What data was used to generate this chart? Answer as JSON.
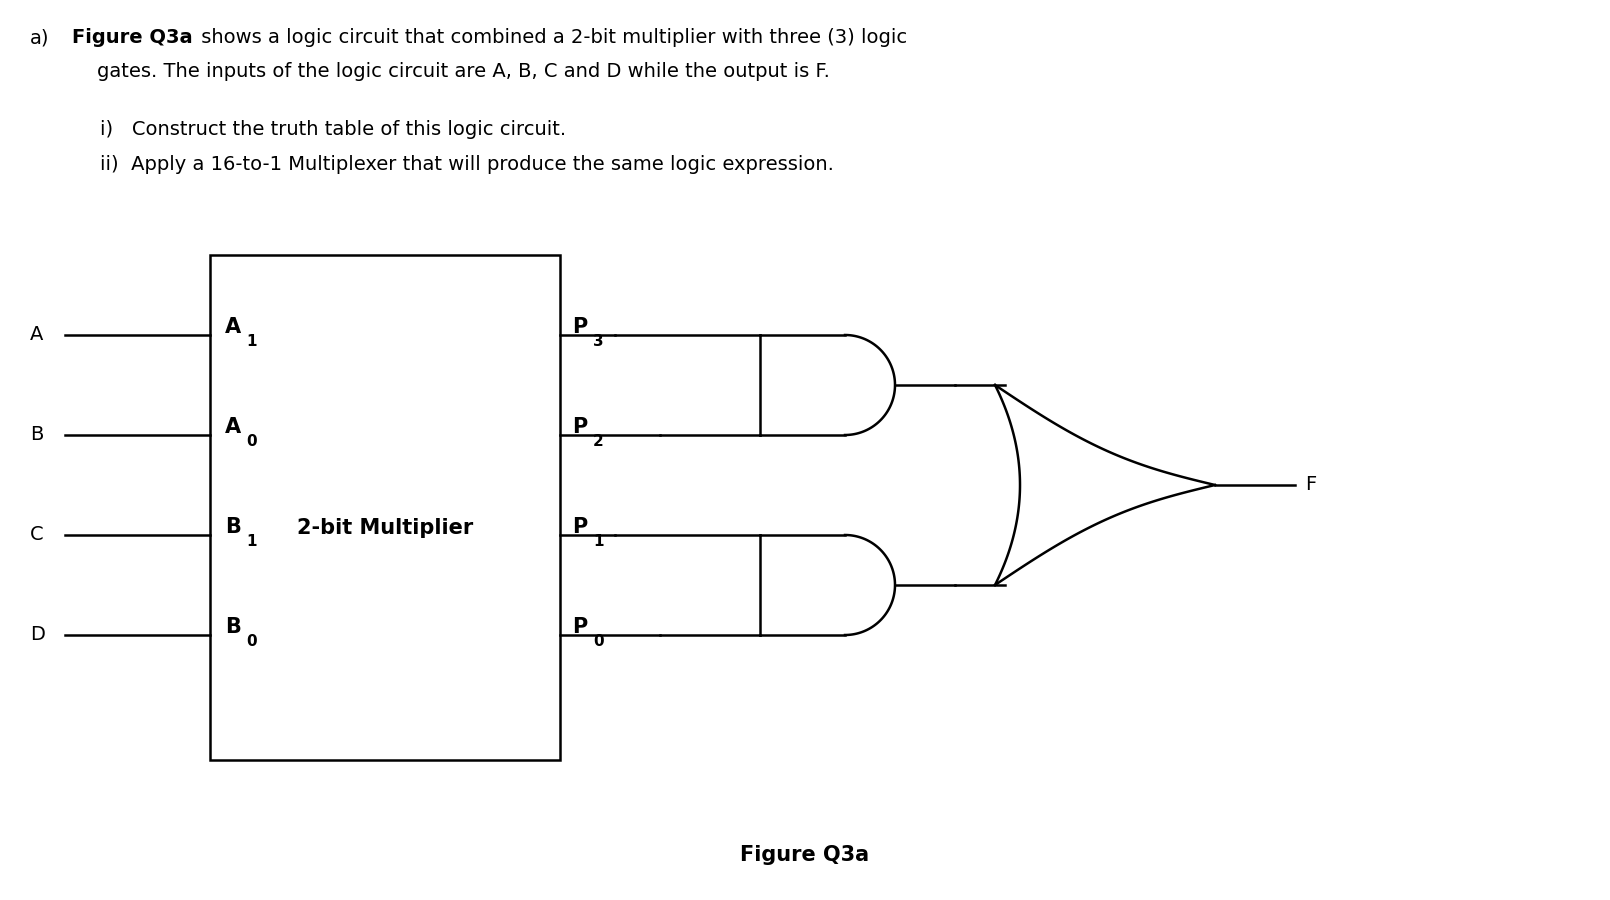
{
  "bg_color": "#ffffff",
  "line_color": "#000000",
  "title_text": "Figure Q3a",
  "multiplier_label": "2-bit Multiplier",
  "output_label": "F",
  "inputs": [
    "A",
    "B",
    "C",
    "D"
  ],
  "input_labels_inside": [
    [
      "A",
      "1"
    ],
    [
      "A",
      "0"
    ],
    [
      "B",
      "1"
    ],
    [
      "B",
      "0"
    ]
  ],
  "output_labels": [
    [
      "P",
      "3"
    ],
    [
      "P",
      "2"
    ],
    [
      "P",
      "1"
    ],
    [
      "P",
      "0"
    ]
  ],
  "header_line1_bold": "Figure Q3a",
  "header_line1_rest": " shows a logic circuit that combined a 2-bit multiplier with three (3) logic",
  "header_line2": "    gates. The inputs of the logic circuit are A, B, C and D while the output is F.",
  "item_i": "i)   Construct the truth table of this logic circuit.",
  "item_ii": "ii)  Apply a 16-to-1 Multiplexer that will produce the same logic expression."
}
